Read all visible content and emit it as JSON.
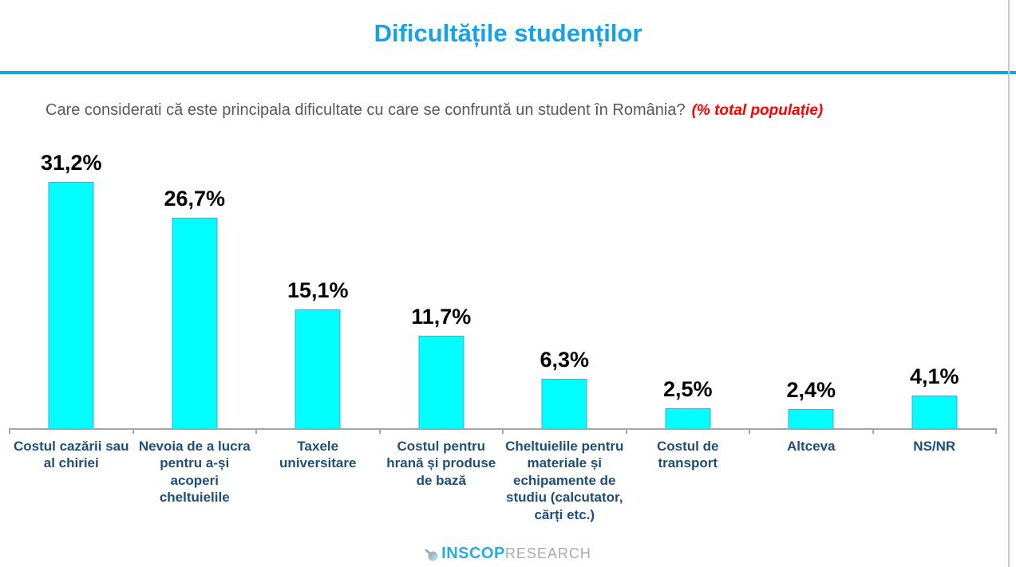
{
  "page": {
    "title": "Dificultățile studenților",
    "question": "Care considerati că este principala dificultate cu care se confruntă un student în România?",
    "question_note": "(% total populație)"
  },
  "chart_data": {
    "type": "bar",
    "title": "Dificultățile studenților",
    "subtitle": "Care considerati că este principala dificultate cu care se confruntă un student în România? (% total populație)",
    "categories": [
      "Costul cazării sau al chiriei",
      "Nevoia de a lucra pentru a-și acoperi cheltuielile",
      "Taxele universitare",
      "Costul pentru hrană și produse de bază",
      "Cheltuielile pentru materiale și echipamente de studiu (calcutator, cărți etc.)",
      "Costul de transport",
      "Altceva",
      "NS/NR"
    ],
    "values": [
      31.2,
      26.7,
      15.1,
      11.7,
      6.3,
      2.5,
      2.4,
      4.1
    ],
    "value_labels": [
      "31,2%",
      "26,7%",
      "15,1%",
      "11,7%",
      "6,3%",
      "2,5%",
      "2,4%",
      "4,1%"
    ],
    "unit": "%",
    "xlabel": "",
    "ylabel": "",
    "ylim": [
      0,
      37
    ],
    "grid": false,
    "legend": false,
    "bar_color": "#00FFFF",
    "bar_border_color": "#41A9D2",
    "value_label_color": "#000000",
    "category_label_color": "#1F4E79",
    "axis_color": "#A6A6A6"
  },
  "footer": {
    "logo_primary": "INSCOP",
    "logo_secondary": "RESEARCH",
    "logo_primary_color": "#29ABE2",
    "logo_secondary_color": "#ABABAB"
  },
  "colors": {
    "accent_blue": "#18A2E4",
    "question_text": "#595959",
    "note_red": "#FF0000"
  }
}
